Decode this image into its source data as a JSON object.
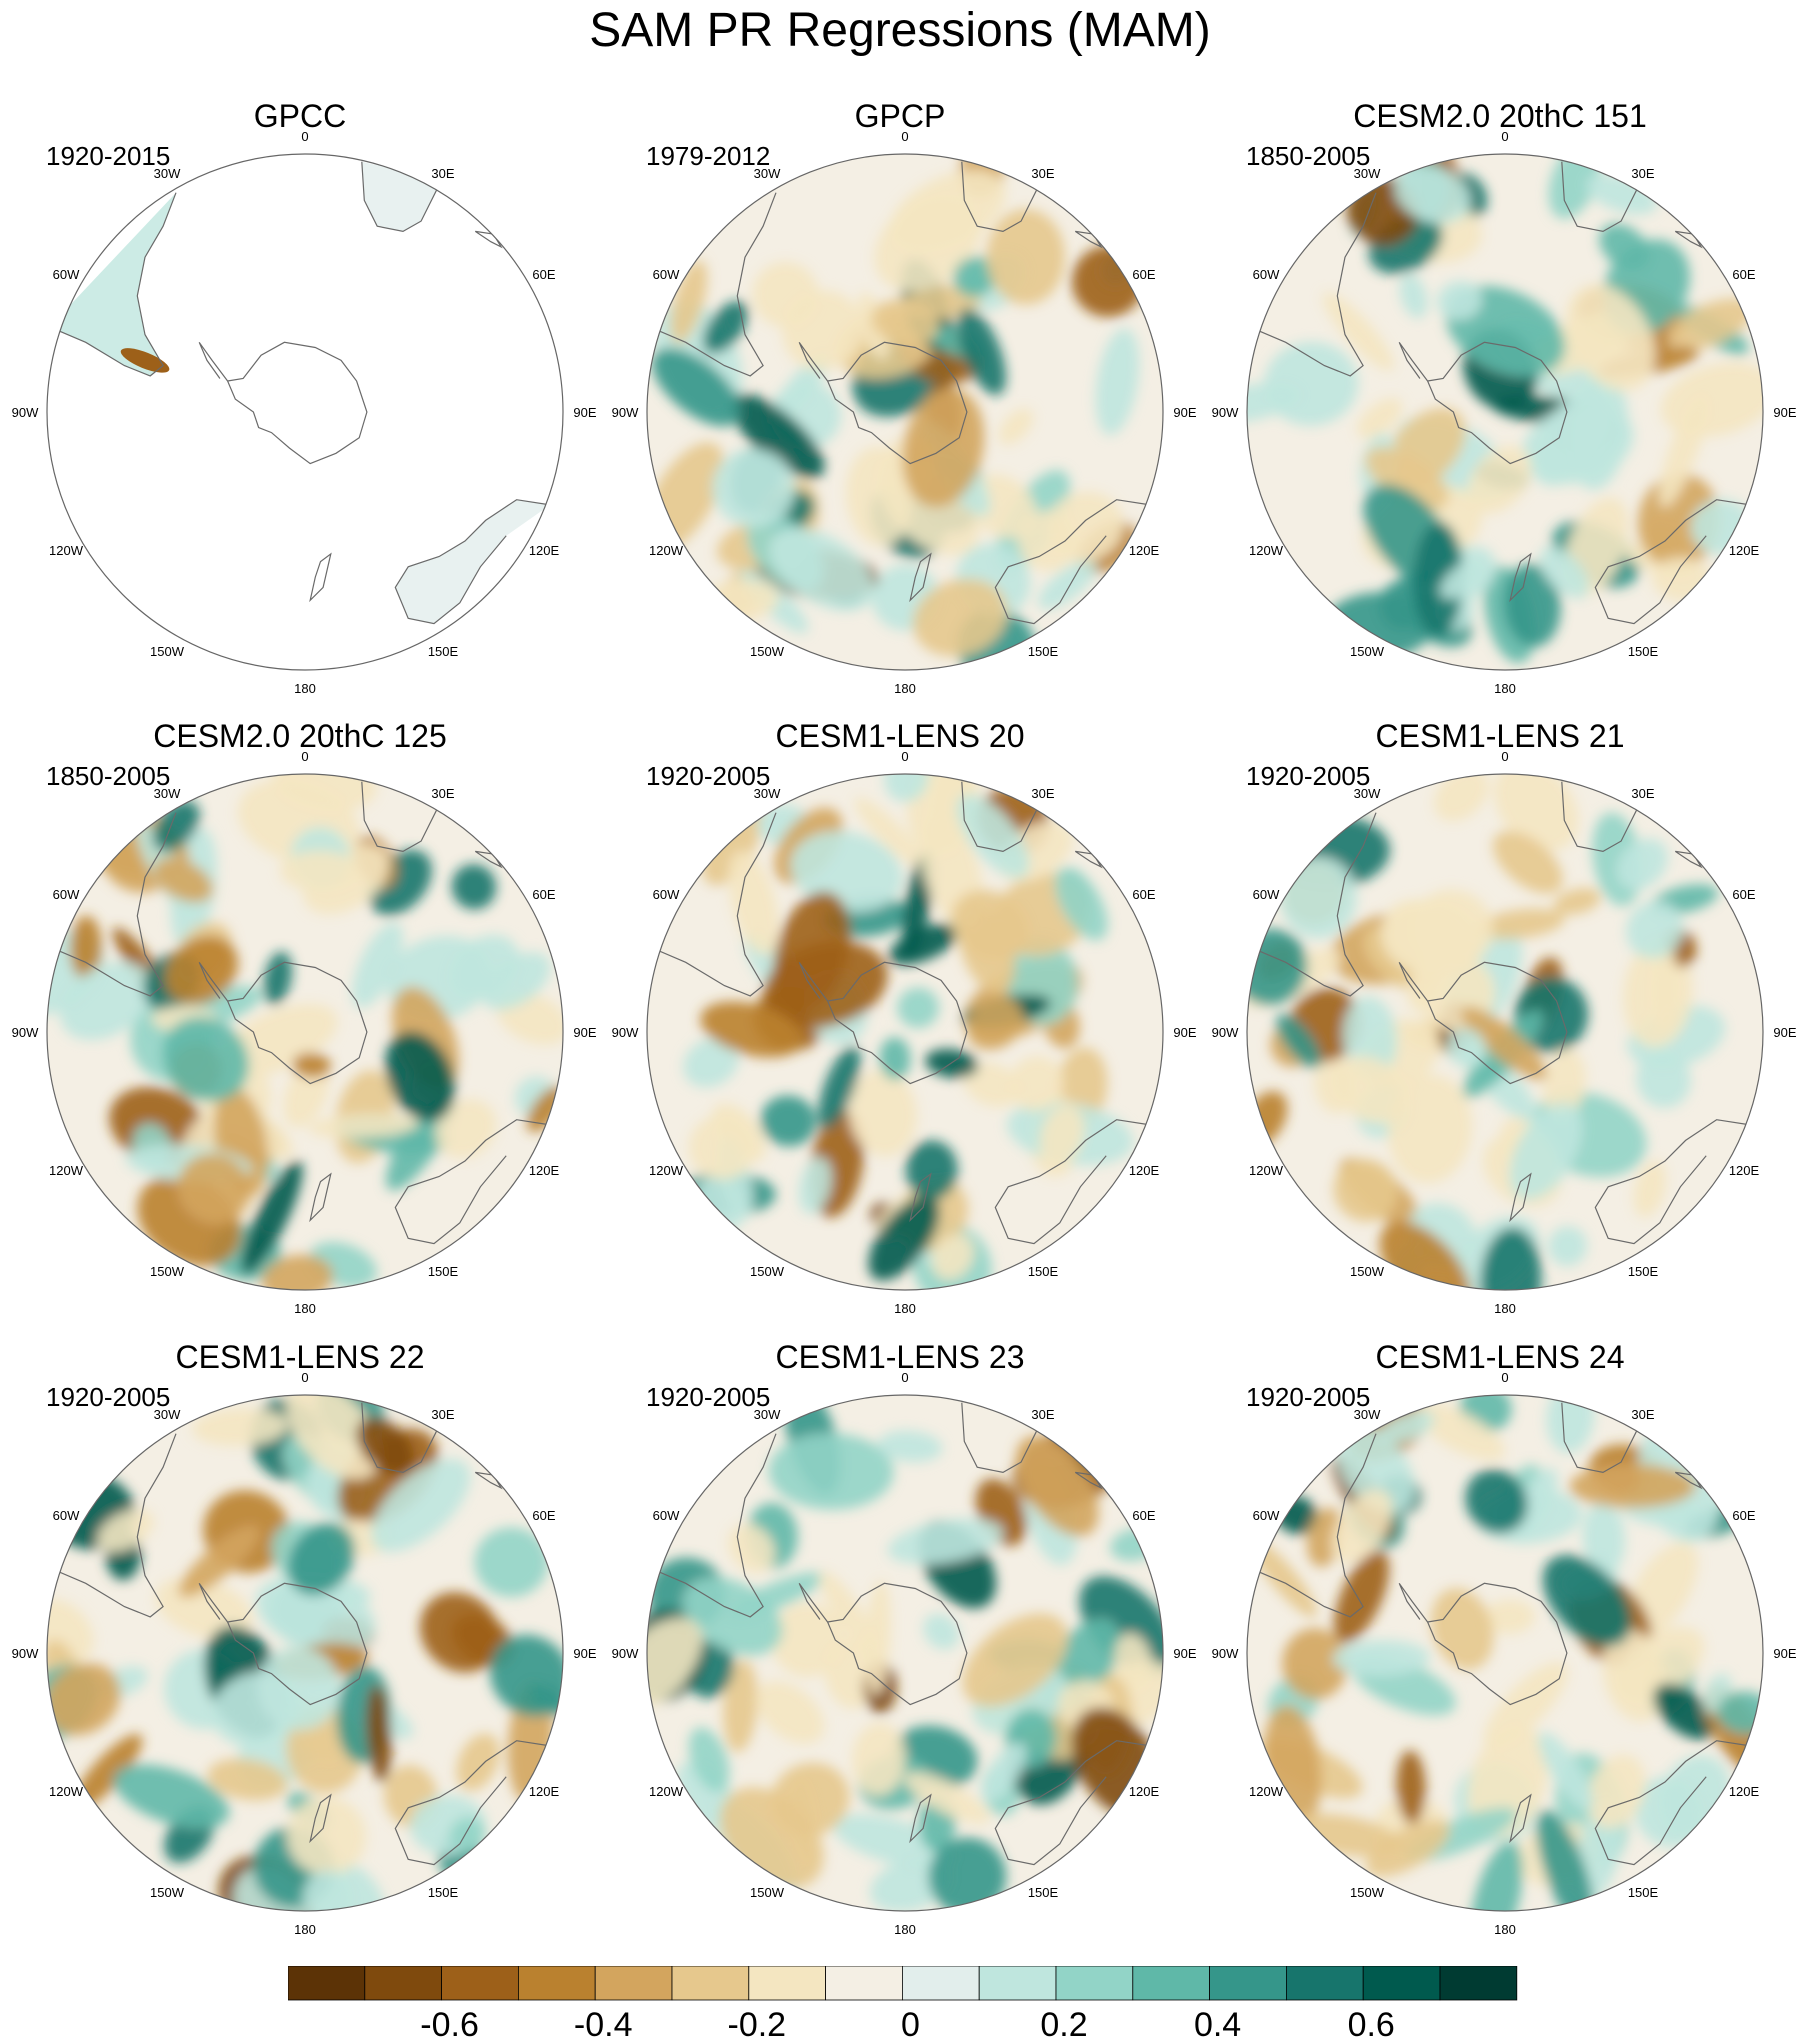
{
  "title": "SAM PR Regressions (MAM)",
  "lon_labels": [
    "0",
    "30E",
    "60E",
    "90E",
    "120E",
    "150E",
    "180",
    "150W",
    "120W",
    "90W",
    "60W",
    "30W"
  ],
  "panels": [
    {
      "title": "GPCC",
      "period": "1920-2015",
      "land_only": true
    },
    {
      "title": "GPCP",
      "period": "1979-2012",
      "land_only": false
    },
    {
      "title": "CESM2.0 20thC 151",
      "period": "1850-2005",
      "land_only": false
    },
    {
      "title": "CESM2.0 20thC 125",
      "period": "1850-2005",
      "land_only": false
    },
    {
      "title": "CESM1-LENS 20",
      "period": "1920-2005",
      "land_only": false
    },
    {
      "title": "CESM1-LENS 21",
      "period": "1920-2005",
      "land_only": false
    },
    {
      "title": "CESM1-LENS 22",
      "period": "1920-2005",
      "land_only": false
    },
    {
      "title": "CESM1-LENS 23",
      "period": "1920-2005",
      "land_only": false
    },
    {
      "title": "CESM1-LENS 24",
      "period": "1920-2005",
      "land_only": false
    }
  ],
  "colorbar": {
    "colors": [
      "#5c3306",
      "#7f4a0d",
      "#9d6019",
      "#ba812f",
      "#d3a55e",
      "#e6c88d",
      "#f4e6c1",
      "#f4efe4",
      "#e2eeec",
      "#bfe6de",
      "#92d4c7",
      "#5fb8a8",
      "#35968a",
      "#17756c",
      "#005a4e",
      "#003b32"
    ],
    "tick_labels": [
      "-0.6",
      "-0.4",
      "-0.2",
      "0",
      "0.2",
      "0.4",
      "0.6"
    ]
  }
}
